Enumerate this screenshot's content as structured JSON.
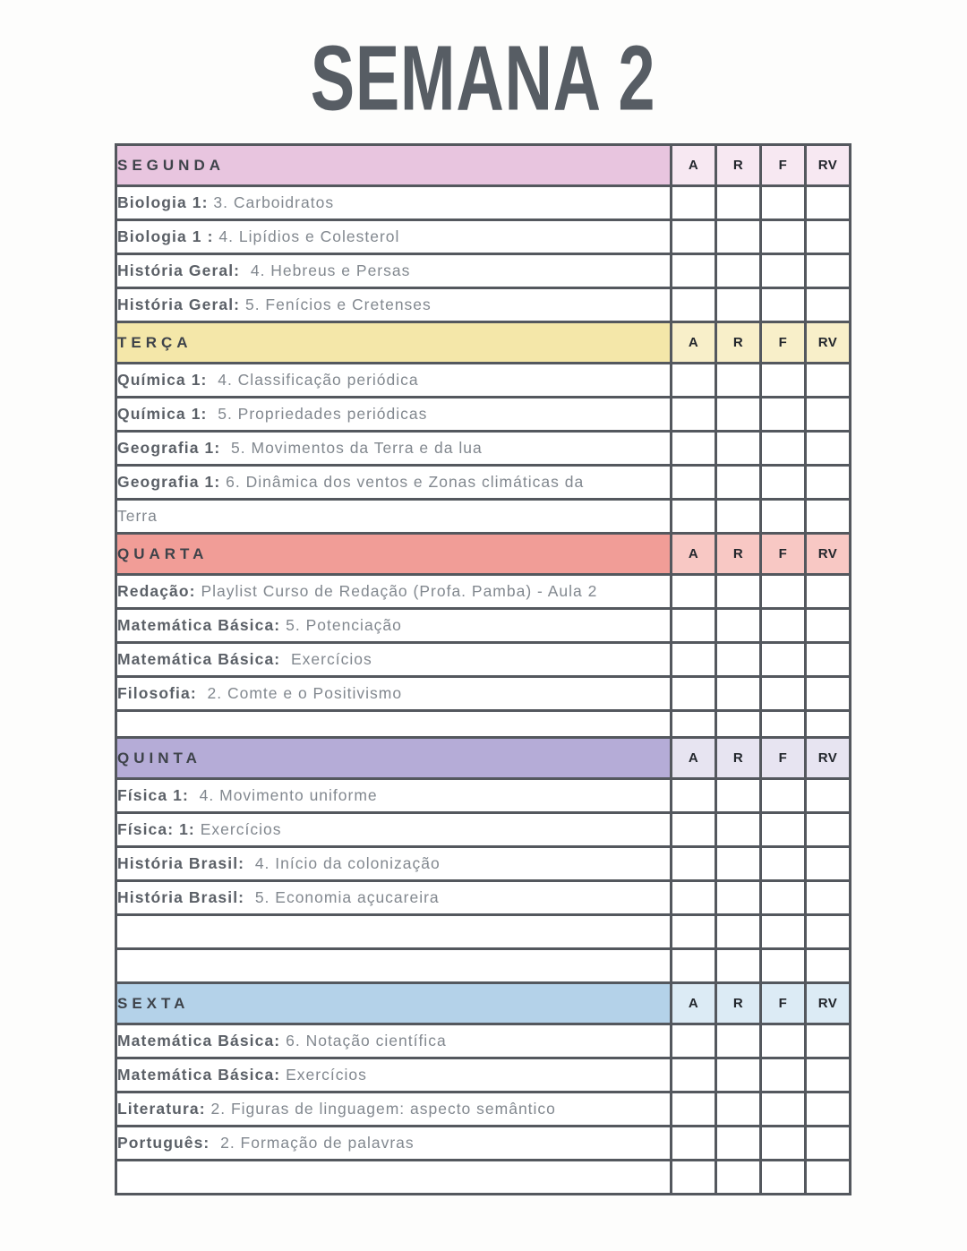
{
  "page": {
    "title": "SEMANA 2"
  },
  "theme": {
    "border": "#54585e",
    "title_color": "#575d64",
    "day_label_color": "#3e434a",
    "subject_color": "#5b6067",
    "detail_color": "#82888f"
  },
  "table": {
    "check_columns": [
      "A",
      "R",
      "F",
      "RV"
    ],
    "sections": [
      {
        "day": "SEGUNDA",
        "colors": {
          "header": "#e8c5df",
          "check": "#f7e8f2"
        },
        "rows": [
          {
            "subject": "Biologia 1:",
            "detail": " 3. Carboidratos"
          },
          {
            "subject": "Biologia 1 :",
            "detail": " 4. Lipídios e Colesterol"
          },
          {
            "subject": "História Geral:",
            "detail": "  4. Hebreus e Persas"
          },
          {
            "subject": "História Geral:",
            "detail": " 5. Fenícios e Cretenses"
          }
        ]
      },
      {
        "day": "TERÇA",
        "colors": {
          "header": "#f4e7a9",
          "check": "#f8efc9"
        },
        "rows": [
          {
            "subject": "Química 1:",
            "detail": "  4. Classificação periódica"
          },
          {
            "subject": "Química 1:",
            "detail": "  5. Propriedades periódicas"
          },
          {
            "subject": "Geografia 1:",
            "detail": "  5. Movimentos da Terra e da lua"
          },
          {
            "subject": "Geografia 1:",
            "detail": " 6. Dinâmica dos ventos e Zonas climáticas da"
          },
          {
            "subject": "",
            "detail": "Terra"
          }
        ]
      },
      {
        "day": "QUARTA",
        "colors": {
          "header": "#f19d97",
          "check": "#f8c8c4"
        },
        "rows": [
          {
            "subject": "Redação:",
            "detail": " Playlist Curso de Redação (Profa. Pamba) - Aula 2"
          },
          {
            "subject": "Matemática Básica:",
            "detail": " 5. Potenciação"
          },
          {
            "subject": "Matemática Básica:",
            "detail": "  Exercícios"
          },
          {
            "subject": "Filosofia:",
            "detail": "  2. Comte e o Positivismo"
          },
          {
            "subject": "",
            "detail": "",
            "short": true
          }
        ]
      },
      {
        "day": "QUINTA",
        "colors": {
          "header": "#b5acd7",
          "check": "#e7e4f1"
        },
        "rows": [
          {
            "subject": "Física 1:",
            "detail": "  4. Movimento uniforme"
          },
          {
            "subject": "Física: 1:",
            "detail": " Exercícios"
          },
          {
            "subject": "História Brasil:",
            "detail": "  4. Início da colonização"
          },
          {
            "subject": "História Brasil:",
            "detail": "  5. Economia açucareira"
          },
          {
            "subject": "",
            "detail": ""
          },
          {
            "subject": "",
            "detail": ""
          }
        ]
      },
      {
        "day": "SEXTA",
        "colors": {
          "header": "#b4d2e9",
          "check": "#dcebf5"
        },
        "rows": [
          {
            "subject": "Matemática Básica:",
            "detail": " 6. Notação científica"
          },
          {
            "subject": "Matemática Básica:",
            "detail": " Exercícios"
          },
          {
            "subject": "Literatura:",
            "detail": " 2. Figuras de linguagem: aspecto semântico"
          },
          {
            "subject": "Português:",
            "detail": "  2. Formação de palavras"
          },
          {
            "subject": "",
            "detail": ""
          }
        ]
      }
    ]
  }
}
